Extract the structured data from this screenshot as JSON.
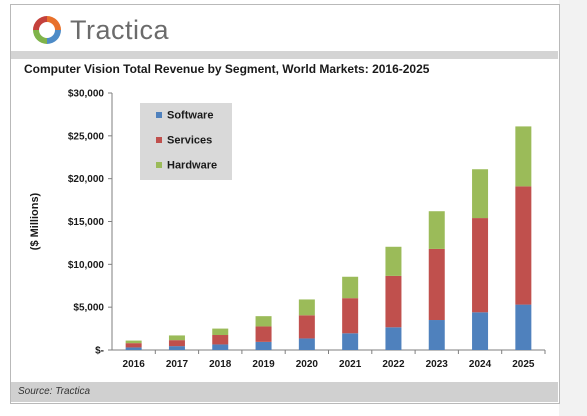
{
  "brand": {
    "name": "Tractica",
    "logo_colors": [
      "#e8712b",
      "#4d8bc7",
      "#7fb34a",
      "#c4413c"
    ]
  },
  "source": "Source: Tractica",
  "chart_data": {
    "type": "bar",
    "stacked": true,
    "title": "Computer Vision Total Revenue by Segment, World Markets: 2016-2025",
    "xlabel": "",
    "ylabel": "($ Millions)",
    "ylim": [
      0,
      30000
    ],
    "yticks": [
      0,
      5000,
      10000,
      15000,
      20000,
      25000,
      30000
    ],
    "ytick_labels": [
      "$-",
      "$5,000",
      "$10,000",
      "$15,000",
      "$20,000",
      "$25,000",
      "$30,000"
    ],
    "grid": false,
    "legend_position": "top-left",
    "categories": [
      "2016",
      "2017",
      "2018",
      "2019",
      "2020",
      "2021",
      "2022",
      "2023",
      "2024",
      "2025"
    ],
    "series": [
      {
        "name": "Software",
        "color": "#4f81bd",
        "values": [
          300,
          450,
          650,
          950,
          1350,
          1950,
          2650,
          3500,
          4400,
          5300
        ]
      },
      {
        "name": "Services",
        "color": "#c0504d",
        "values": [
          500,
          700,
          1100,
          1800,
          2700,
          4100,
          6000,
          8300,
          11000,
          13800
        ]
      },
      {
        "name": "Hardware",
        "color": "#9bbb59",
        "values": [
          300,
          550,
          750,
          1200,
          1850,
          2500,
          3400,
          4400,
          5700,
          7000
        ]
      }
    ]
  }
}
